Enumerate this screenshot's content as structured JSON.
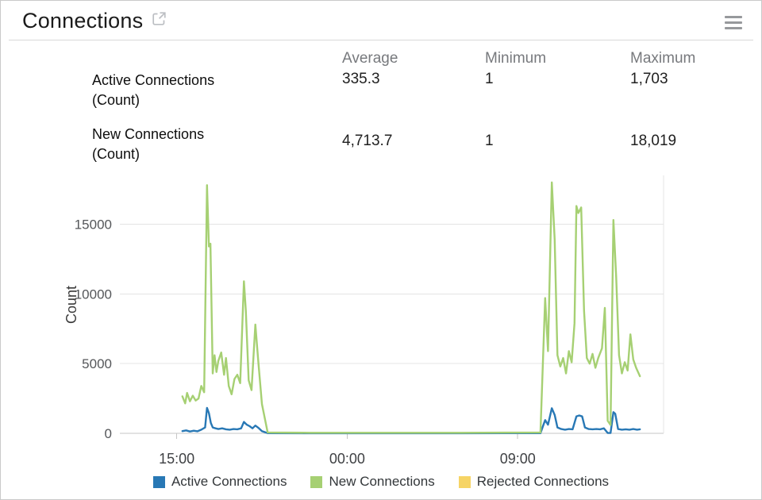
{
  "header": {
    "title": "Connections"
  },
  "stats": {
    "columns": [
      "Average",
      "Minimum",
      "Maximum"
    ],
    "rows": [
      {
        "label_lines": [
          "Active Connections",
          "(Count)"
        ],
        "average": "335.3",
        "minimum": "1",
        "maximum": "1,703"
      },
      {
        "label_lines": [
          "New Connections",
          "(Count)"
        ],
        "average": "4,713.7",
        "minimum": "1",
        "maximum": "18,019"
      }
    ]
  },
  "chart_data": {
    "type": "line",
    "title": "",
    "xlabel": "",
    "ylabel": "Count",
    "x_axis_note": "time of day in decimal hours; values >= 24 are the following day",
    "xlim": [
      12,
      40.7
    ],
    "ylim": [
      0,
      18500
    ],
    "y_ticks": [
      0,
      5000,
      10000,
      15000
    ],
    "x_ticks": [
      {
        "value": 15,
        "label": "15:00"
      },
      {
        "value": 24,
        "label": "00:00"
      },
      {
        "value": 33,
        "label": "09:00"
      }
    ],
    "grid": "horizontal",
    "legend_position": "bottom",
    "draw_order": [
      2,
      0,
      1
    ],
    "series": [
      {
        "name": "Active Connections",
        "color": "#2878b5",
        "points": [
          [
            15.3,
            160
          ],
          [
            15.5,
            210
          ],
          [
            15.7,
            130
          ],
          [
            15.9,
            190
          ],
          [
            16.1,
            150
          ],
          [
            16.3,
            260
          ],
          [
            16.5,
            420
          ],
          [
            16.6,
            1830
          ],
          [
            16.7,
            1450
          ],
          [
            16.8,
            750
          ],
          [
            16.9,
            420
          ],
          [
            17.05,
            360
          ],
          [
            17.2,
            310
          ],
          [
            17.4,
            360
          ],
          [
            17.6,
            290
          ],
          [
            17.8,
            260
          ],
          [
            18.0,
            310
          ],
          [
            18.2,
            290
          ],
          [
            18.4,
            360
          ],
          [
            18.55,
            820
          ],
          [
            18.7,
            620
          ],
          [
            18.85,
            510
          ],
          [
            19.0,
            360
          ],
          [
            19.15,
            560
          ],
          [
            19.3,
            410
          ],
          [
            19.5,
            160
          ],
          [
            19.8,
            10
          ],
          [
            22.0,
            5
          ],
          [
            26.0,
            5
          ],
          [
            30.0,
            5
          ],
          [
            34.2,
            10
          ],
          [
            34.45,
            950
          ],
          [
            34.6,
            620
          ],
          [
            34.8,
            1800
          ],
          [
            34.95,
            1320
          ],
          [
            35.1,
            420
          ],
          [
            35.3,
            310
          ],
          [
            35.5,
            260
          ],
          [
            35.7,
            310
          ],
          [
            35.9,
            290
          ],
          [
            36.1,
            1220
          ],
          [
            36.25,
            1280
          ],
          [
            36.4,
            1210
          ],
          [
            36.55,
            420
          ],
          [
            36.75,
            310
          ],
          [
            36.95,
            290
          ],
          [
            37.15,
            310
          ],
          [
            37.35,
            290
          ],
          [
            37.55,
            360
          ],
          [
            37.75,
            30
          ],
          [
            37.9,
            20
          ],
          [
            38.05,
            1520
          ],
          [
            38.15,
            1400
          ],
          [
            38.3,
            310
          ],
          [
            38.5,
            260
          ],
          [
            38.7,
            290
          ],
          [
            38.9,
            260
          ],
          [
            39.1,
            310
          ],
          [
            39.3,
            260
          ],
          [
            39.45,
            290
          ]
        ]
      },
      {
        "name": "New Connections",
        "color": "#a6d073",
        "points": [
          [
            15.3,
            2650
          ],
          [
            15.45,
            2150
          ],
          [
            15.55,
            2900
          ],
          [
            15.7,
            2300
          ],
          [
            15.85,
            2700
          ],
          [
            16.0,
            2350
          ],
          [
            16.15,
            2500
          ],
          [
            16.3,
            3400
          ],
          [
            16.45,
            2950
          ],
          [
            16.6,
            17800
          ],
          [
            16.7,
            13400
          ],
          [
            16.78,
            13600
          ],
          [
            16.9,
            4300
          ],
          [
            17.0,
            5600
          ],
          [
            17.1,
            4400
          ],
          [
            17.2,
            5200
          ],
          [
            17.35,
            5800
          ],
          [
            17.5,
            4200
          ],
          [
            17.6,
            5400
          ],
          [
            17.75,
            3400
          ],
          [
            17.9,
            2800
          ],
          [
            18.05,
            3900
          ],
          [
            18.2,
            4200
          ],
          [
            18.35,
            3600
          ],
          [
            18.55,
            10900
          ],
          [
            18.65,
            8800
          ],
          [
            18.8,
            3800
          ],
          [
            18.95,
            3100
          ],
          [
            19.15,
            7800
          ],
          [
            19.3,
            5300
          ],
          [
            19.5,
            2100
          ],
          [
            19.8,
            60
          ],
          [
            22.0,
            40
          ],
          [
            26.0,
            40
          ],
          [
            30.0,
            40
          ],
          [
            34.2,
            60
          ],
          [
            34.45,
            9700
          ],
          [
            34.6,
            5900
          ],
          [
            34.8,
            18000
          ],
          [
            34.95,
            13900
          ],
          [
            35.1,
            5600
          ],
          [
            35.25,
            4800
          ],
          [
            35.4,
            5400
          ],
          [
            35.55,
            4300
          ],
          [
            35.7,
            5900
          ],
          [
            35.85,
            5100
          ],
          [
            36.0,
            7900
          ],
          [
            36.1,
            16300
          ],
          [
            36.2,
            15800
          ],
          [
            36.35,
            16200
          ],
          [
            36.5,
            8800
          ],
          [
            36.65,
            5400
          ],
          [
            36.8,
            5000
          ],
          [
            36.95,
            5700
          ],
          [
            37.1,
            4700
          ],
          [
            37.25,
            5400
          ],
          [
            37.45,
            6100
          ],
          [
            37.6,
            9000
          ],
          [
            37.75,
            900
          ],
          [
            37.9,
            600
          ],
          [
            38.05,
            15300
          ],
          [
            38.2,
            11200
          ],
          [
            38.35,
            5600
          ],
          [
            38.5,
            4300
          ],
          [
            38.65,
            5100
          ],
          [
            38.8,
            4500
          ],
          [
            38.95,
            7100
          ],
          [
            39.1,
            5300
          ],
          [
            39.25,
            4700
          ],
          [
            39.45,
            4100
          ]
        ]
      },
      {
        "name": "Rejected Connections",
        "color": "#f6d465",
        "points": []
      }
    ]
  }
}
